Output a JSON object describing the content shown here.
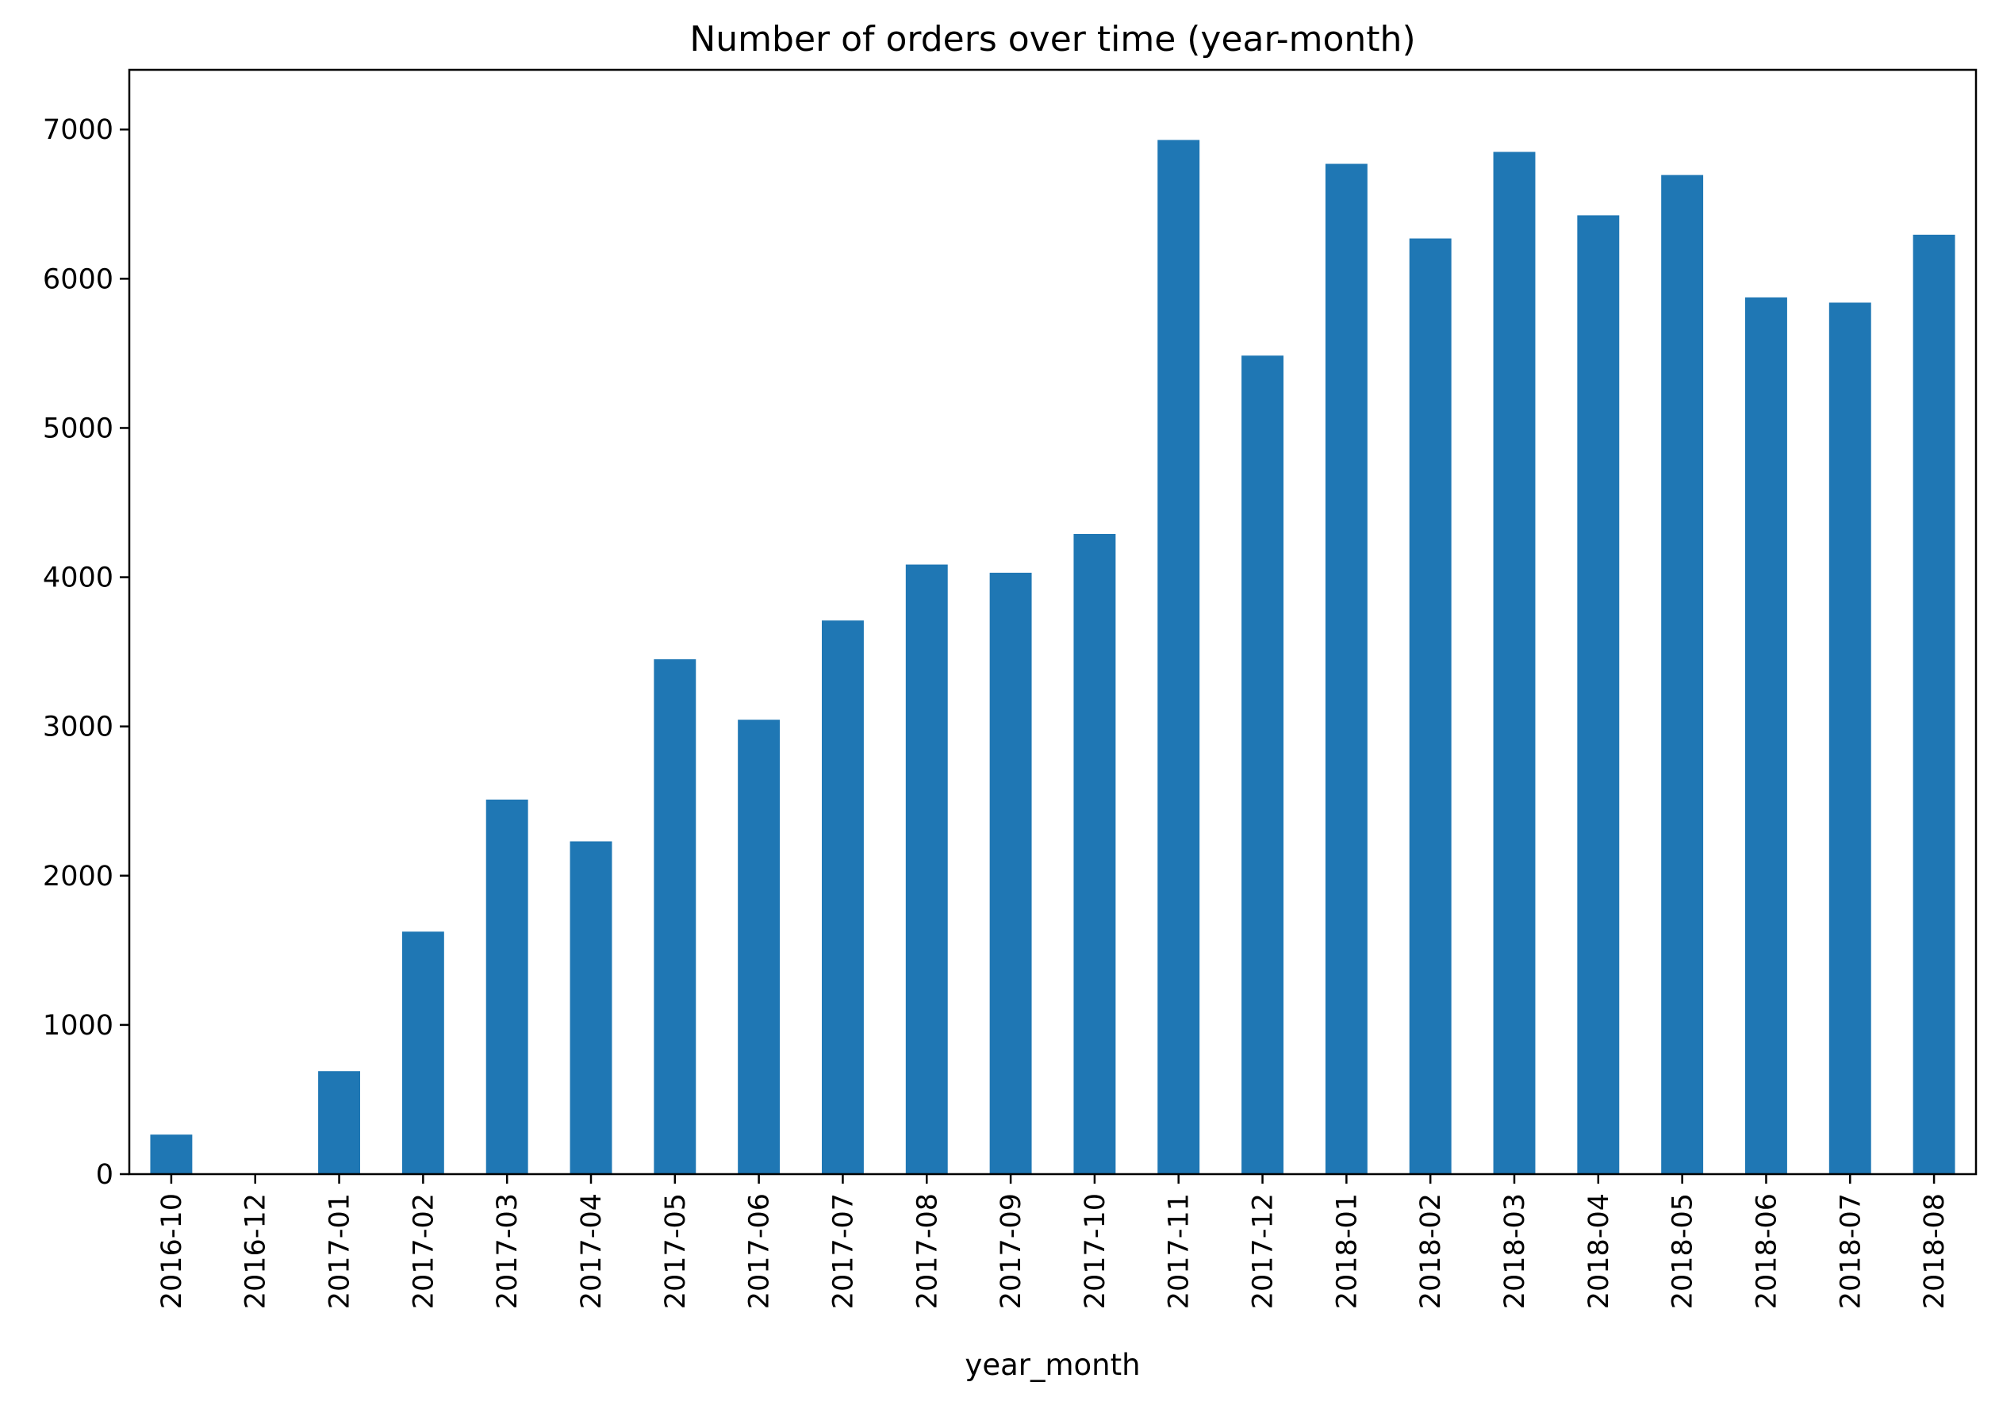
{
  "chart_data": {
    "type": "bar",
    "title": "Number of orders over time (year-month)",
    "xlabel": "year_month",
    "ylabel": "",
    "categories": [
      "2016-10",
      "2016-12",
      "2017-01",
      "2017-02",
      "2017-03",
      "2017-04",
      "2017-05",
      "2017-06",
      "2017-07",
      "2017-08",
      "2017-09",
      "2017-10",
      "2017-11",
      "2017-12",
      "2018-01",
      "2018-02",
      "2018-03",
      "2018-04",
      "2018-05",
      "2018-06",
      "2018-07",
      "2018-08"
    ],
    "values": [
      265,
      1,
      690,
      1625,
      2510,
      2230,
      3450,
      3045,
      3710,
      4085,
      4030,
      4290,
      6930,
      5485,
      6770,
      6270,
      6850,
      6425,
      6695,
      5875,
      5840,
      6295
    ],
    "ylim": [
      0,
      7400
    ],
    "yticks": [
      0,
      1000,
      2000,
      3000,
      4000,
      5000,
      6000,
      7000
    ],
    "bar_color": "#1f77b4",
    "grid": false,
    "legend": "none"
  }
}
